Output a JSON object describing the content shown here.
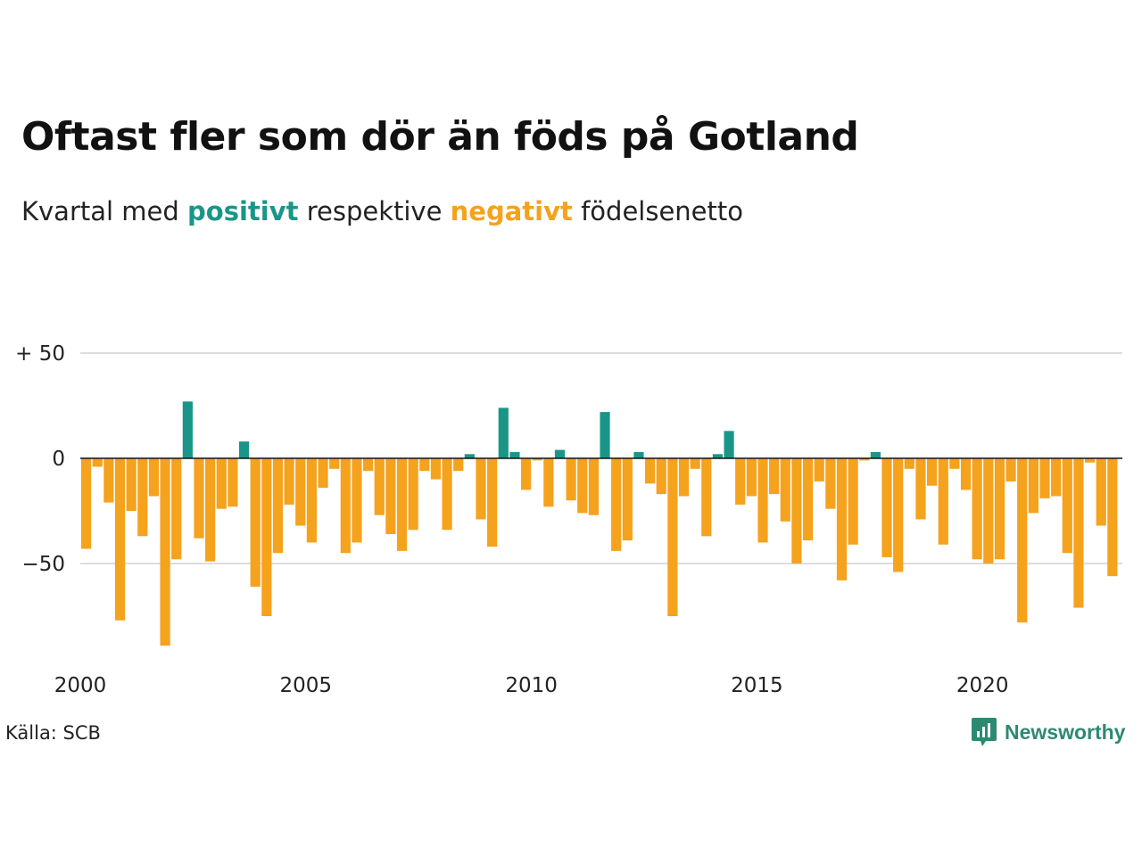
{
  "title": "Oftast fler som dör än föds på Gotland",
  "subtitle": {
    "prefix": "Kvartal med ",
    "positive_word": "positivt",
    "middle": " respektive ",
    "negative_word": "negativt",
    "suffix": " födelsenetto"
  },
  "source": "Källa: SCB",
  "brand": {
    "name": "Newsworthy",
    "icon": "bar-chart-speech-bubble-icon"
  },
  "colors": {
    "positive": "#1a9688",
    "negative": "#f5a21d",
    "grid": "#dddddd",
    "zero_line": "#111111",
    "brand": "#2d8a70"
  },
  "chart_data": {
    "type": "bar",
    "x_start": "2000 Q1",
    "frequency": "quarterly",
    "ylim": [
      -95,
      50
    ],
    "y_ticks": [
      {
        "value": 50,
        "label": "+ 50"
      },
      {
        "value": 0,
        "label": "0"
      },
      {
        "value": -50,
        "label": "−50"
      }
    ],
    "x_ticks": [
      "2000",
      "2005",
      "2010",
      "2015",
      "2020"
    ],
    "grid": true,
    "values": [
      -43,
      -4,
      -21,
      -77,
      -25,
      -37,
      -18,
      -89,
      -48,
      27,
      -38,
      -49,
      -24,
      -23,
      8,
      -61,
      -75,
      -45,
      -22,
      -32,
      -40,
      -14,
      -5,
      -45,
      -40,
      -6,
      -27,
      -36,
      -44,
      -34,
      -6,
      -10,
      -34,
      -6,
      2,
      -29,
      -42,
      24,
      3,
      -15,
      -1,
      -23,
      4,
      -20,
      -26,
      -27,
      22,
      -44,
      -39,
      3,
      -12,
      -17,
      -75,
      -18,
      -5,
      -37,
      2,
      13,
      -22,
      -18,
      -40,
      -17,
      -30,
      -50,
      -39,
      -11,
      -24,
      -58,
      -41,
      -1,
      3,
      -47,
      -54,
      -5,
      -29,
      -13,
      -41,
      -5,
      -15,
      -48,
      -50,
      -48,
      -11,
      -78,
      -26,
      -19,
      -18,
      -45,
      -71,
      -2,
      -32,
      -56
    ]
  }
}
